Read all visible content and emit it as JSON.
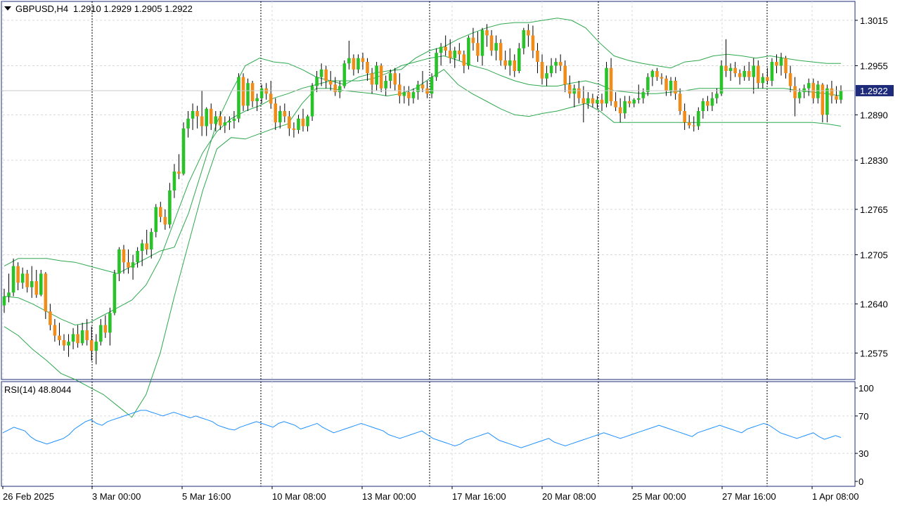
{
  "header": {
    "symbol": "GBPUSD,H4",
    "ohlc": "1.2910 1.2929 1.2905 1.2922"
  },
  "current_price_label": "1.2922",
  "rsi_header": "RSI(14) 48.8044",
  "colors": {
    "bull": "#29c229",
    "bear": "#f08c1a",
    "bands": "#2fa84f",
    "rsi": "#1e90ff",
    "price_box": "#1e2b7a",
    "border": "#1e2b7a"
  },
  "chart_data": {
    "type": "candlestick",
    "title": "GBPUSD,H4",
    "price_ticks": [
      "1.3015",
      "1.2955",
      "1.2890",
      "1.2830",
      "1.2765",
      "1.2705",
      "1.2640",
      "1.2575"
    ],
    "price_range": [
      1.254,
      1.304
    ],
    "current_price": 1.2922,
    "rsi_ticks": [
      "100",
      "70",
      "30",
      "0"
    ],
    "rsi_range": [
      0,
      100
    ],
    "x_ticks": [
      "26 Feb 2025",
      "3 Mar 00:00",
      "5 Mar 16:00",
      "10 Mar 08:00",
      "13 Mar 00:00",
      "17 Mar 16:00",
      "20 Mar 08:00",
      "25 Mar 00:00",
      "27 Mar 16:00",
      "1 Apr 08:00"
    ],
    "period_separators": [
      21,
      61,
      101,
      141,
      181
    ],
    "candles": [
      [
        1.2638,
        1.266,
        1.2628,
        1.265
      ],
      [
        1.265,
        1.268,
        1.2642,
        1.2655
      ],
      [
        1.2655,
        1.27,
        1.265,
        1.269
      ],
      [
        1.269,
        1.2695,
        1.2658,
        1.2668
      ],
      [
        1.2668,
        1.2688,
        1.266,
        1.268
      ],
      [
        1.268,
        1.2685,
        1.2655,
        1.2662
      ],
      [
        1.2662,
        1.269,
        1.2648,
        1.267
      ],
      [
        1.267,
        1.2685,
        1.2648,
        1.2652
      ],
      [
        1.2652,
        1.2685,
        1.265,
        1.268
      ],
      [
        1.268,
        1.2682,
        1.262,
        1.263
      ],
      [
        1.263,
        1.264,
        1.2605,
        1.2612
      ],
      [
        1.2612,
        1.262,
        1.259,
        1.2598
      ],
      [
        1.2598,
        1.2615,
        1.2585,
        1.2592
      ],
      [
        1.2592,
        1.26,
        1.2578,
        1.2585
      ],
      [
        1.2585,
        1.26,
        1.257,
        1.259
      ],
      [
        1.259,
        1.2608,
        1.258,
        1.26
      ],
      [
        1.26,
        1.2612,
        1.2582,
        1.2588
      ],
      [
        1.2588,
        1.2615,
        1.2585,
        1.2605
      ],
      [
        1.2605,
        1.262,
        1.2585,
        1.2592
      ],
      [
        1.2592,
        1.261,
        1.2565,
        1.2578
      ],
      [
        1.2578,
        1.26,
        1.256,
        1.259
      ],
      [
        1.259,
        1.262,
        1.2585,
        1.2612
      ],
      [
        1.2612,
        1.2625,
        1.2595,
        1.2602
      ],
      [
        1.2602,
        1.2635,
        1.2585,
        1.2628
      ],
      [
        1.2628,
        1.2685,
        1.2625,
        1.268
      ],
      [
        1.268,
        1.2715,
        1.267,
        1.2712
      ],
      [
        1.2712,
        1.2718,
        1.268,
        1.2695
      ],
      [
        1.2695,
        1.2712,
        1.268,
        1.2688
      ],
      [
        1.2688,
        1.2705,
        1.2672,
        1.2695
      ],
      [
        1.2695,
        1.2715,
        1.2688,
        1.271
      ],
      [
        1.271,
        1.2725,
        1.269,
        1.272
      ],
      [
        1.272,
        1.2738,
        1.2705,
        1.2712
      ],
      [
        1.2712,
        1.274,
        1.27,
        1.2735
      ],
      [
        1.2735,
        1.2772,
        1.2728,
        1.2768
      ],
      [
        1.2768,
        1.2775,
        1.2748,
        1.2755
      ],
      [
        1.2755,
        1.2765,
        1.2738,
        1.2745
      ],
      [
        1.2745,
        1.28,
        1.274,
        1.279
      ],
      [
        1.279,
        1.2825,
        1.278,
        1.2815
      ],
      [
        1.2815,
        1.2838,
        1.2805,
        1.2812
      ],
      [
        1.2812,
        1.288,
        1.281,
        1.2872
      ],
      [
        1.2872,
        1.2895,
        1.286,
        1.2885
      ],
      [
        1.2885,
        1.2905,
        1.287,
        1.2895
      ],
      [
        1.2895,
        1.2902,
        1.2872,
        1.2888
      ],
      [
        1.2888,
        1.2922,
        1.2862,
        1.2875
      ],
      [
        1.2875,
        1.29,
        1.2862,
        1.2898
      ],
      [
        1.2898,
        1.2905,
        1.287,
        1.2878
      ],
      [
        1.2878,
        1.2895,
        1.2868,
        1.2888
      ],
      [
        1.2888,
        1.2895,
        1.287,
        1.2876
      ],
      [
        1.2876,
        1.2888,
        1.2866,
        1.288
      ],
      [
        1.288,
        1.2888,
        1.287,
        1.2882
      ],
      [
        1.2882,
        1.2895,
        1.2872,
        1.2885
      ],
      [
        1.2885,
        1.2945,
        1.288,
        1.294
      ],
      [
        1.294,
        1.2945,
        1.2895,
        1.2902
      ],
      [
        1.2902,
        1.2938,
        1.2895,
        1.2932
      ],
      [
        1.2932,
        1.2935,
        1.29,
        1.2908
      ],
      [
        1.2908,
        1.2918,
        1.2895,
        1.2912
      ],
      [
        1.2912,
        1.293,
        1.2905,
        1.2925
      ],
      [
        1.2925,
        1.2932,
        1.291,
        1.2918
      ],
      [
        1.2918,
        1.2935,
        1.2898,
        1.2905
      ],
      [
        1.2905,
        1.2912,
        1.287,
        1.288
      ],
      [
        1.288,
        1.2902,
        1.2872,
        1.2895
      ],
      [
        1.2895,
        1.2905,
        1.288,
        1.2888
      ],
      [
        1.2888,
        1.2895,
        1.2862,
        1.2872
      ],
      [
        1.2872,
        1.288,
        1.286,
        1.287
      ],
      [
        1.287,
        1.289,
        1.2865,
        1.2885
      ],
      [
        1.2885,
        1.2898,
        1.2868,
        1.2875
      ],
      [
        1.2875,
        1.289,
        1.2868,
        1.2888
      ],
      [
        1.2888,
        1.2932,
        1.2882,
        1.2928
      ],
      [
        1.2928,
        1.2948,
        1.292,
        1.294
      ],
      [
        1.294,
        1.2958,
        1.2928,
        1.295
      ],
      [
        1.295,
        1.2955,
        1.2925,
        1.2935
      ],
      [
        1.2935,
        1.2948,
        1.2922,
        1.293
      ],
      [
        1.293,
        1.294,
        1.2915,
        1.292
      ],
      [
        1.292,
        1.2935,
        1.2912,
        1.2928
      ],
      [
        1.2928,
        1.2962,
        1.2925,
        1.2958
      ],
      [
        1.2958,
        1.2988,
        1.295,
        1.2965
      ],
      [
        1.2965,
        1.297,
        1.2942,
        1.295
      ],
      [
        1.295,
        1.297,
        1.2945,
        1.2965
      ],
      [
        1.2965,
        1.2972,
        1.295,
        1.296
      ],
      [
        1.296,
        1.2965,
        1.2935,
        1.2945
      ],
      [
        1.2945,
        1.2952,
        1.2918,
        1.293
      ],
      [
        1.293,
        1.296,
        1.2922,
        1.2955
      ],
      [
        1.2955,
        1.2958,
        1.292,
        1.2925
      ],
      [
        1.2925,
        1.2942,
        1.2915,
        1.2935
      ],
      [
        1.2935,
        1.295,
        1.2925,
        1.2945
      ],
      [
        1.2945,
        1.2952,
        1.2922,
        1.293
      ],
      [
        1.293,
        1.2945,
        1.2905,
        1.2915
      ],
      [
        1.2915,
        1.2928,
        1.2905,
        1.292
      ],
      [
        1.292,
        1.2928,
        1.2902,
        1.2912
      ],
      [
        1.2912,
        1.2925,
        1.2905,
        1.292
      ],
      [
        1.292,
        1.2935,
        1.291,
        1.293
      ],
      [
        1.293,
        1.2948,
        1.292,
        1.2925
      ],
      [
        1.2925,
        1.2935,
        1.2912,
        1.2918
      ],
      [
        1.2918,
        1.2945,
        1.2912,
        1.294
      ],
      [
        1.294,
        1.2978,
        1.2935,
        1.2972
      ],
      [
        1.2972,
        1.2985,
        1.2955,
        1.298
      ],
      [
        1.298,
        1.2995,
        1.2968,
        1.2975
      ],
      [
        1.2975,
        1.299,
        1.2958,
        1.2965
      ],
      [
        1.2965,
        1.298,
        1.2952,
        1.2975
      ],
      [
        1.2975,
        1.2985,
        1.2962,
        1.297
      ],
      [
        1.297,
        1.2975,
        1.2945,
        1.2955
      ],
      [
        1.2955,
        1.2995,
        1.295,
        1.2992
      ],
      [
        1.2992,
        1.3005,
        1.2975,
        1.2985
      ],
      [
        1.2985,
        1.3,
        1.296,
        1.2968
      ],
      [
        1.2968,
        1.3005,
        1.2955,
        1.3002
      ],
      [
        1.3002,
        1.301,
        1.298,
        1.2995
      ],
      [
        1.2995,
        1.3002,
        1.2968,
        1.2975
      ],
      [
        1.2975,
        1.2995,
        1.2962,
        1.2985
      ],
      [
        1.2985,
        1.299,
        1.2955,
        1.2962
      ],
      [
        1.2962,
        1.2975,
        1.295,
        1.2955
      ],
      [
        1.2955,
        1.2978,
        1.2942,
        1.2962
      ],
      [
        1.2962,
        1.297,
        1.294,
        1.2948
      ],
      [
        1.2948,
        1.2985,
        1.2945,
        1.2978
      ],
      [
        1.2978,
        1.3005,
        1.297,
        1.3002
      ],
      [
        1.3002,
        1.301,
        1.298,
        1.2995
      ],
      [
        1.2995,
        1.3008,
        1.2965,
        1.2975
      ],
      [
        1.2975,
        1.2985,
        1.2945,
        1.296
      ],
      [
        1.296,
        1.297,
        1.293,
        1.2938
      ],
      [
        1.2938,
        1.2955,
        1.2928,
        1.2945
      ],
      [
        1.2945,
        1.2965,
        1.294,
        1.2955
      ],
      [
        1.2955,
        1.2965,
        1.2945,
        1.296
      ],
      [
        1.296,
        1.297,
        1.2948,
        1.2955
      ],
      [
        1.2955,
        1.2962,
        1.292,
        1.293
      ],
      [
        1.293,
        1.2942,
        1.2912,
        1.2918
      ],
      [
        1.2918,
        1.293,
        1.29,
        1.2925
      ],
      [
        1.2925,
        1.2935,
        1.2905,
        1.2912
      ],
      [
        1.2912,
        1.2928,
        1.288,
        1.2905
      ],
      [
        1.2905,
        1.292,
        1.2898,
        1.2912
      ],
      [
        1.2912,
        1.2918,
        1.29,
        1.2905
      ],
      [
        1.2905,
        1.2915,
        1.2898,
        1.291
      ],
      [
        1.291,
        1.2918,
        1.2895,
        1.2905
      ],
      [
        1.2905,
        1.296,
        1.29,
        1.2952
      ],
      [
        1.2952,
        1.2965,
        1.2902,
        1.2908
      ],
      [
        1.2908,
        1.292,
        1.2895,
        1.29
      ],
      [
        1.29,
        1.2912,
        1.288,
        1.2892
      ],
      [
        1.2892,
        1.2915,
        1.2885,
        1.2908
      ],
      [
        1.2908,
        1.2915,
        1.29,
        1.2905
      ],
      [
        1.2905,
        1.2912,
        1.29,
        1.291
      ],
      [
        1.291,
        1.293,
        1.2905,
        1.2912
      ],
      [
        1.2912,
        1.2925,
        1.2905,
        1.292
      ],
      [
        1.292,
        1.2945,
        1.2915,
        1.294
      ],
      [
        1.294,
        1.295,
        1.2928,
        1.2948
      ],
      [
        1.2948,
        1.2952,
        1.2935,
        1.294
      ],
      [
        1.294,
        1.2945,
        1.293,
        1.2938
      ],
      [
        1.2938,
        1.2942,
        1.2915,
        1.2922
      ],
      [
        1.2922,
        1.294,
        1.2915,
        1.2935
      ],
      [
        1.2935,
        1.294,
        1.291,
        1.2918
      ],
      [
        1.2918,
        1.2925,
        1.289,
        1.2895
      ],
      [
        1.2895,
        1.2905,
        1.287,
        1.288
      ],
      [
        1.288,
        1.289,
        1.2872,
        1.2876
      ],
      [
        1.2876,
        1.2888,
        1.2868,
        1.2875
      ],
      [
        1.2875,
        1.29,
        1.287,
        1.2895
      ],
      [
        1.2895,
        1.2912,
        1.2885,
        1.2908
      ],
      [
        1.2908,
        1.2915,
        1.2895,
        1.2902
      ],
      [
        1.2902,
        1.292,
        1.2895,
        1.2912
      ],
      [
        1.2912,
        1.2925,
        1.2905,
        1.2918
      ],
      [
        1.2918,
        1.2962,
        1.2915,
        1.2955
      ],
      [
        1.2955,
        1.299,
        1.294,
        1.2948
      ],
      [
        1.2948,
        1.2958,
        1.2935,
        1.2952
      ],
      [
        1.2952,
        1.296,
        1.294,
        1.2945
      ],
      [
        1.2945,
        1.295,
        1.293,
        1.294
      ],
      [
        1.294,
        1.2955,
        1.2935,
        1.2948
      ],
      [
        1.2948,
        1.296,
        1.2935,
        1.294
      ],
      [
        1.294,
        1.2965,
        1.2918,
        1.2955
      ],
      [
        1.2955,
        1.2962,
        1.2925,
        1.2932
      ],
      [
        1.2932,
        1.2945,
        1.2925,
        1.294
      ],
      [
        1.294,
        1.2952,
        1.293,
        1.2935
      ],
      [
        1.2935,
        1.2965,
        1.2928,
        1.296
      ],
      [
        1.296,
        1.297,
        1.2945,
        1.2955
      ],
      [
        1.2955,
        1.2972,
        1.2942,
        1.2965
      ],
      [
        1.2965,
        1.2968,
        1.2938,
        1.2945
      ],
      [
        1.2945,
        1.2955,
        1.292,
        1.2928
      ],
      [
        1.2928,
        1.294,
        1.2888,
        1.2912
      ],
      [
        1.2912,
        1.2925,
        1.2905,
        1.292
      ],
      [
        1.292,
        1.293,
        1.2912,
        1.2925
      ],
      [
        1.2925,
        1.2938,
        1.2915,
        1.2932
      ],
      [
        1.2932,
        1.2938,
        1.2905,
        1.2912
      ],
      [
        1.2912,
        1.2935,
        1.2905,
        1.293
      ],
      [
        1.293,
        1.2932,
        1.288,
        1.289
      ],
      [
        1.289,
        1.293,
        1.288,
        1.2925
      ],
      [
        1.2925,
        1.2935,
        1.2905,
        1.2915
      ],
      [
        1.2915,
        1.2928,
        1.2905,
        1.291
      ],
      [
        1.291,
        1.2929,
        1.2905,
        1.2922
      ]
    ],
    "bb_upper": [
      1.269,
      1.27,
      1.27,
      1.27,
      1.2697,
      1.2695,
      1.269,
      1.2685,
      1.268,
      1.269,
      1.27,
      1.271,
      1.2715,
      1.276,
      1.282,
      1.288,
      1.292,
      1.2955,
      1.2965,
      1.296,
      1.2958,
      1.295,
      1.294,
      1.2935,
      1.293,
      1.294,
      1.2945,
      1.2948,
      1.295,
      1.2965,
      1.2975,
      1.298,
      1.299,
      1.2998,
      1.3005,
      1.301,
      1.3012,
      1.3012,
      1.3015,
      1.3018,
      1.3015,
      1.3005,
      1.2985,
      1.2968,
      1.2962,
      1.2958,
      1.2955,
      1.2952,
      1.296,
      1.2962,
      1.2968,
      1.297,
      1.2968,
      1.2965,
      1.2968,
      1.2965,
      1.2962,
      1.296,
      1.2958,
      1.2958
    ],
    "bb_middle": [
      1.265,
      1.2648,
      1.264,
      1.263,
      1.262,
      1.2612,
      1.2615,
      1.2625,
      1.2635,
      1.2645,
      1.2665,
      1.27,
      1.275,
      1.28,
      1.284,
      1.2868,
      1.2885,
      1.2895,
      1.2902,
      1.2912,
      1.2918,
      1.2925,
      1.293,
      1.2935,
      1.2935,
      1.2935,
      1.2938,
      1.2945,
      1.2955,
      1.296,
      1.2965,
      1.2968,
      1.2962,
      1.2955,
      1.295,
      1.2942,
      1.2935,
      1.293,
      1.2928,
      1.2928,
      1.2932,
      1.2935,
      1.293,
      1.2922,
      1.292,
      1.2918,
      1.2918,
      1.292,
      1.2922,
      1.2925,
      1.2925,
      1.2925,
      1.2925,
      1.2925,
      1.2925,
      1.2925,
      1.2922,
      1.292,
      1.2918,
      1.2915
    ],
    "bb_lower": [
      1.261,
      1.2598,
      1.258,
      1.2565,
      1.2548,
      1.254,
      1.253,
      1.252,
      1.2505,
      1.249,
      1.252,
      1.2575,
      1.265,
      1.272,
      1.279,
      1.2845,
      1.286,
      1.2858,
      1.2865,
      1.2872,
      1.2878,
      1.2905,
      1.2925,
      1.2925,
      1.2922,
      1.292,
      1.2918,
      1.2915,
      1.2918,
      1.2925,
      1.2938,
      1.295,
      1.293,
      1.2918,
      1.2908,
      1.2898,
      1.289,
      1.2888,
      1.2892,
      1.2895,
      1.29,
      1.2905,
      1.2895,
      1.288,
      1.288,
      1.288,
      1.288,
      1.288,
      1.288,
      1.288,
      1.288,
      1.288,
      1.288,
      1.288,
      1.288,
      1.288,
      1.288,
      1.288,
      1.2878,
      1.2875
    ],
    "rsi": [
      52,
      55,
      58,
      56,
      54,
      48,
      44,
      42,
      40,
      42,
      44,
      46,
      50,
      56,
      60,
      64,
      66,
      62,
      60,
      64,
      66,
      68,
      70,
      72,
      74,
      76,
      76,
      74,
      72,
      70,
      72,
      74,
      72,
      70,
      68,
      70,
      68,
      66,
      64,
      60,
      58,
      56,
      55,
      58,
      60,
      62,
      64,
      62,
      60,
      58,
      62,
      64,
      62,
      60,
      56,
      58,
      60,
      62,
      58,
      55,
      52,
      54,
      56,
      58,
      60,
      62,
      60,
      58,
      56,
      54,
      50,
      48,
      46,
      48,
      50,
      52,
      54,
      50,
      46,
      44,
      42,
      40,
      38,
      40,
      44,
      46,
      48,
      50,
      52,
      48,
      44,
      42,
      40,
      38,
      36,
      38,
      40,
      42,
      44,
      46,
      42,
      40,
      38,
      40,
      42,
      44,
      46,
      48,
      50,
      52,
      50,
      48,
      46,
      48,
      50,
      52,
      54,
      56,
      58,
      60,
      58,
      56,
      54,
      52,
      50,
      48,
      52,
      54,
      56,
      58,
      60,
      58,
      56,
      54,
      52,
      56,
      58,
      60,
      62,
      60,
      56,
      52,
      50,
      48,
      46,
      48,
      50,
      52,
      48,
      45,
      47,
      49,
      47
    ]
  }
}
